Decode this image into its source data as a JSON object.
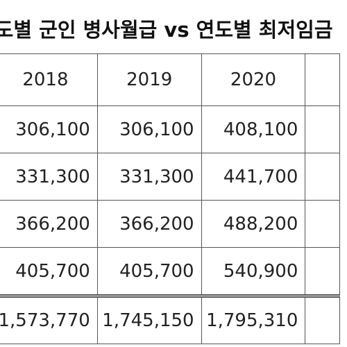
{
  "title": "연도별 군인 병사월급 vs 연도별 최저임금",
  "table": {
    "columns": [
      "2018",
      "2019",
      "2020"
    ],
    "rows": [
      [
        "306,100",
        "306,100",
        "408,100"
      ],
      [
        "331,300",
        "331,300",
        "441,700"
      ],
      [
        "366,200",
        "366,200",
        "488,200"
      ],
      [
        "405,700",
        "405,700",
        "540,900"
      ]
    ],
    "total": [
      "1,573,770",
      "1,745,150",
      "1,795,310"
    ]
  }
}
